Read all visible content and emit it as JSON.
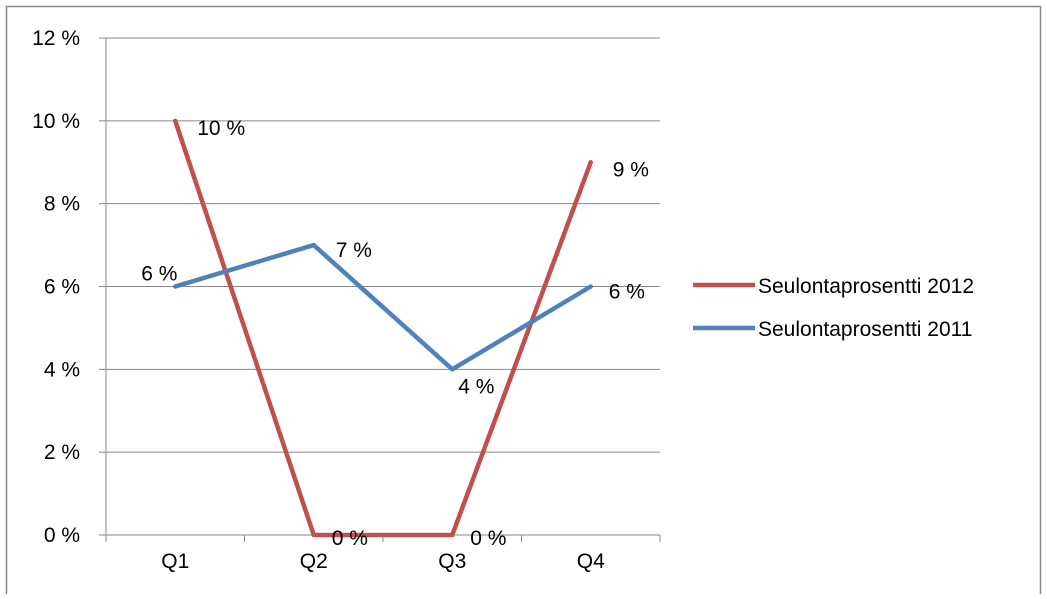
{
  "chart_data": {
    "type": "line",
    "categories": [
      "Q1",
      "Q2",
      "Q3",
      "Q4"
    ],
    "series": [
      {
        "name": "Seulontaprosentti 2012",
        "values": [
          10,
          0,
          0,
          9
        ],
        "labels": [
          "10 %",
          "0 %",
          "0 %",
          "9 %"
        ],
        "color": "#c0504d"
      },
      {
        "name": "Seulontaprosentti 2011",
        "values": [
          6,
          7,
          4,
          6
        ],
        "labels": [
          "6 %",
          "7 %",
          "4 %",
          "6 %"
        ],
        "color": "#4f81bd"
      }
    ],
    "ylim": [
      0,
      12
    ],
    "yticks": [
      0,
      2,
      4,
      6,
      8,
      10,
      12
    ],
    "ytick_labels": [
      "0 %",
      "2 %",
      "4 %",
      "6 %",
      "8 %",
      "10 %",
      "12 %"
    ],
    "title": "",
    "xlabel": "",
    "ylabel": "",
    "grid": true,
    "legend_position": "right"
  },
  "colors": {
    "border": "#878787",
    "grid": "#878787",
    "axis": "#878787"
  }
}
